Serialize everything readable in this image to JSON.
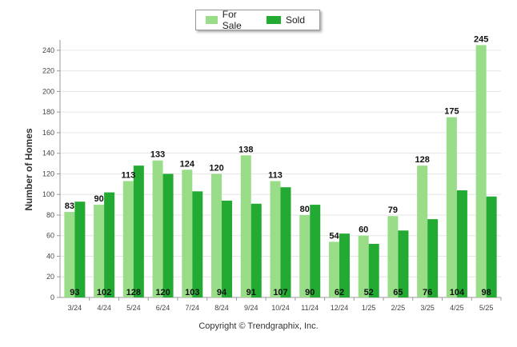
{
  "chart_data": {
    "type": "bar",
    "categories": [
      "3/24",
      "4/24",
      "5/24",
      "6/24",
      "7/24",
      "8/24",
      "9/24",
      "10/24",
      "11/24",
      "12/24",
      "1/25",
      "2/25",
      "3/25",
      "4/25",
      "5/25"
    ],
    "series": [
      {
        "name": "For Sale",
        "values": [
          83,
          90,
          113,
          133,
          124,
          120,
          138,
          113,
          80,
          54,
          60,
          79,
          128,
          175,
          245
        ],
        "color": "#99dd88"
      },
      {
        "name": "Sold",
        "values": [
          93,
          102,
          128,
          120,
          103,
          94,
          91,
          107,
          90,
          62,
          52,
          65,
          76,
          104,
          98
        ],
        "color": "#22aa33"
      }
    ],
    "title": "",
    "xlabel": "",
    "ylabel": "Number of Homes",
    "ylim": [
      0,
      250
    ],
    "yticks": [
      0,
      20,
      40,
      60,
      80,
      100,
      120,
      140,
      160,
      180,
      200,
      220,
      240
    ],
    "grid": true,
    "legend": "top-center"
  },
  "footer": "Copyright © Trendgraphix, Inc."
}
